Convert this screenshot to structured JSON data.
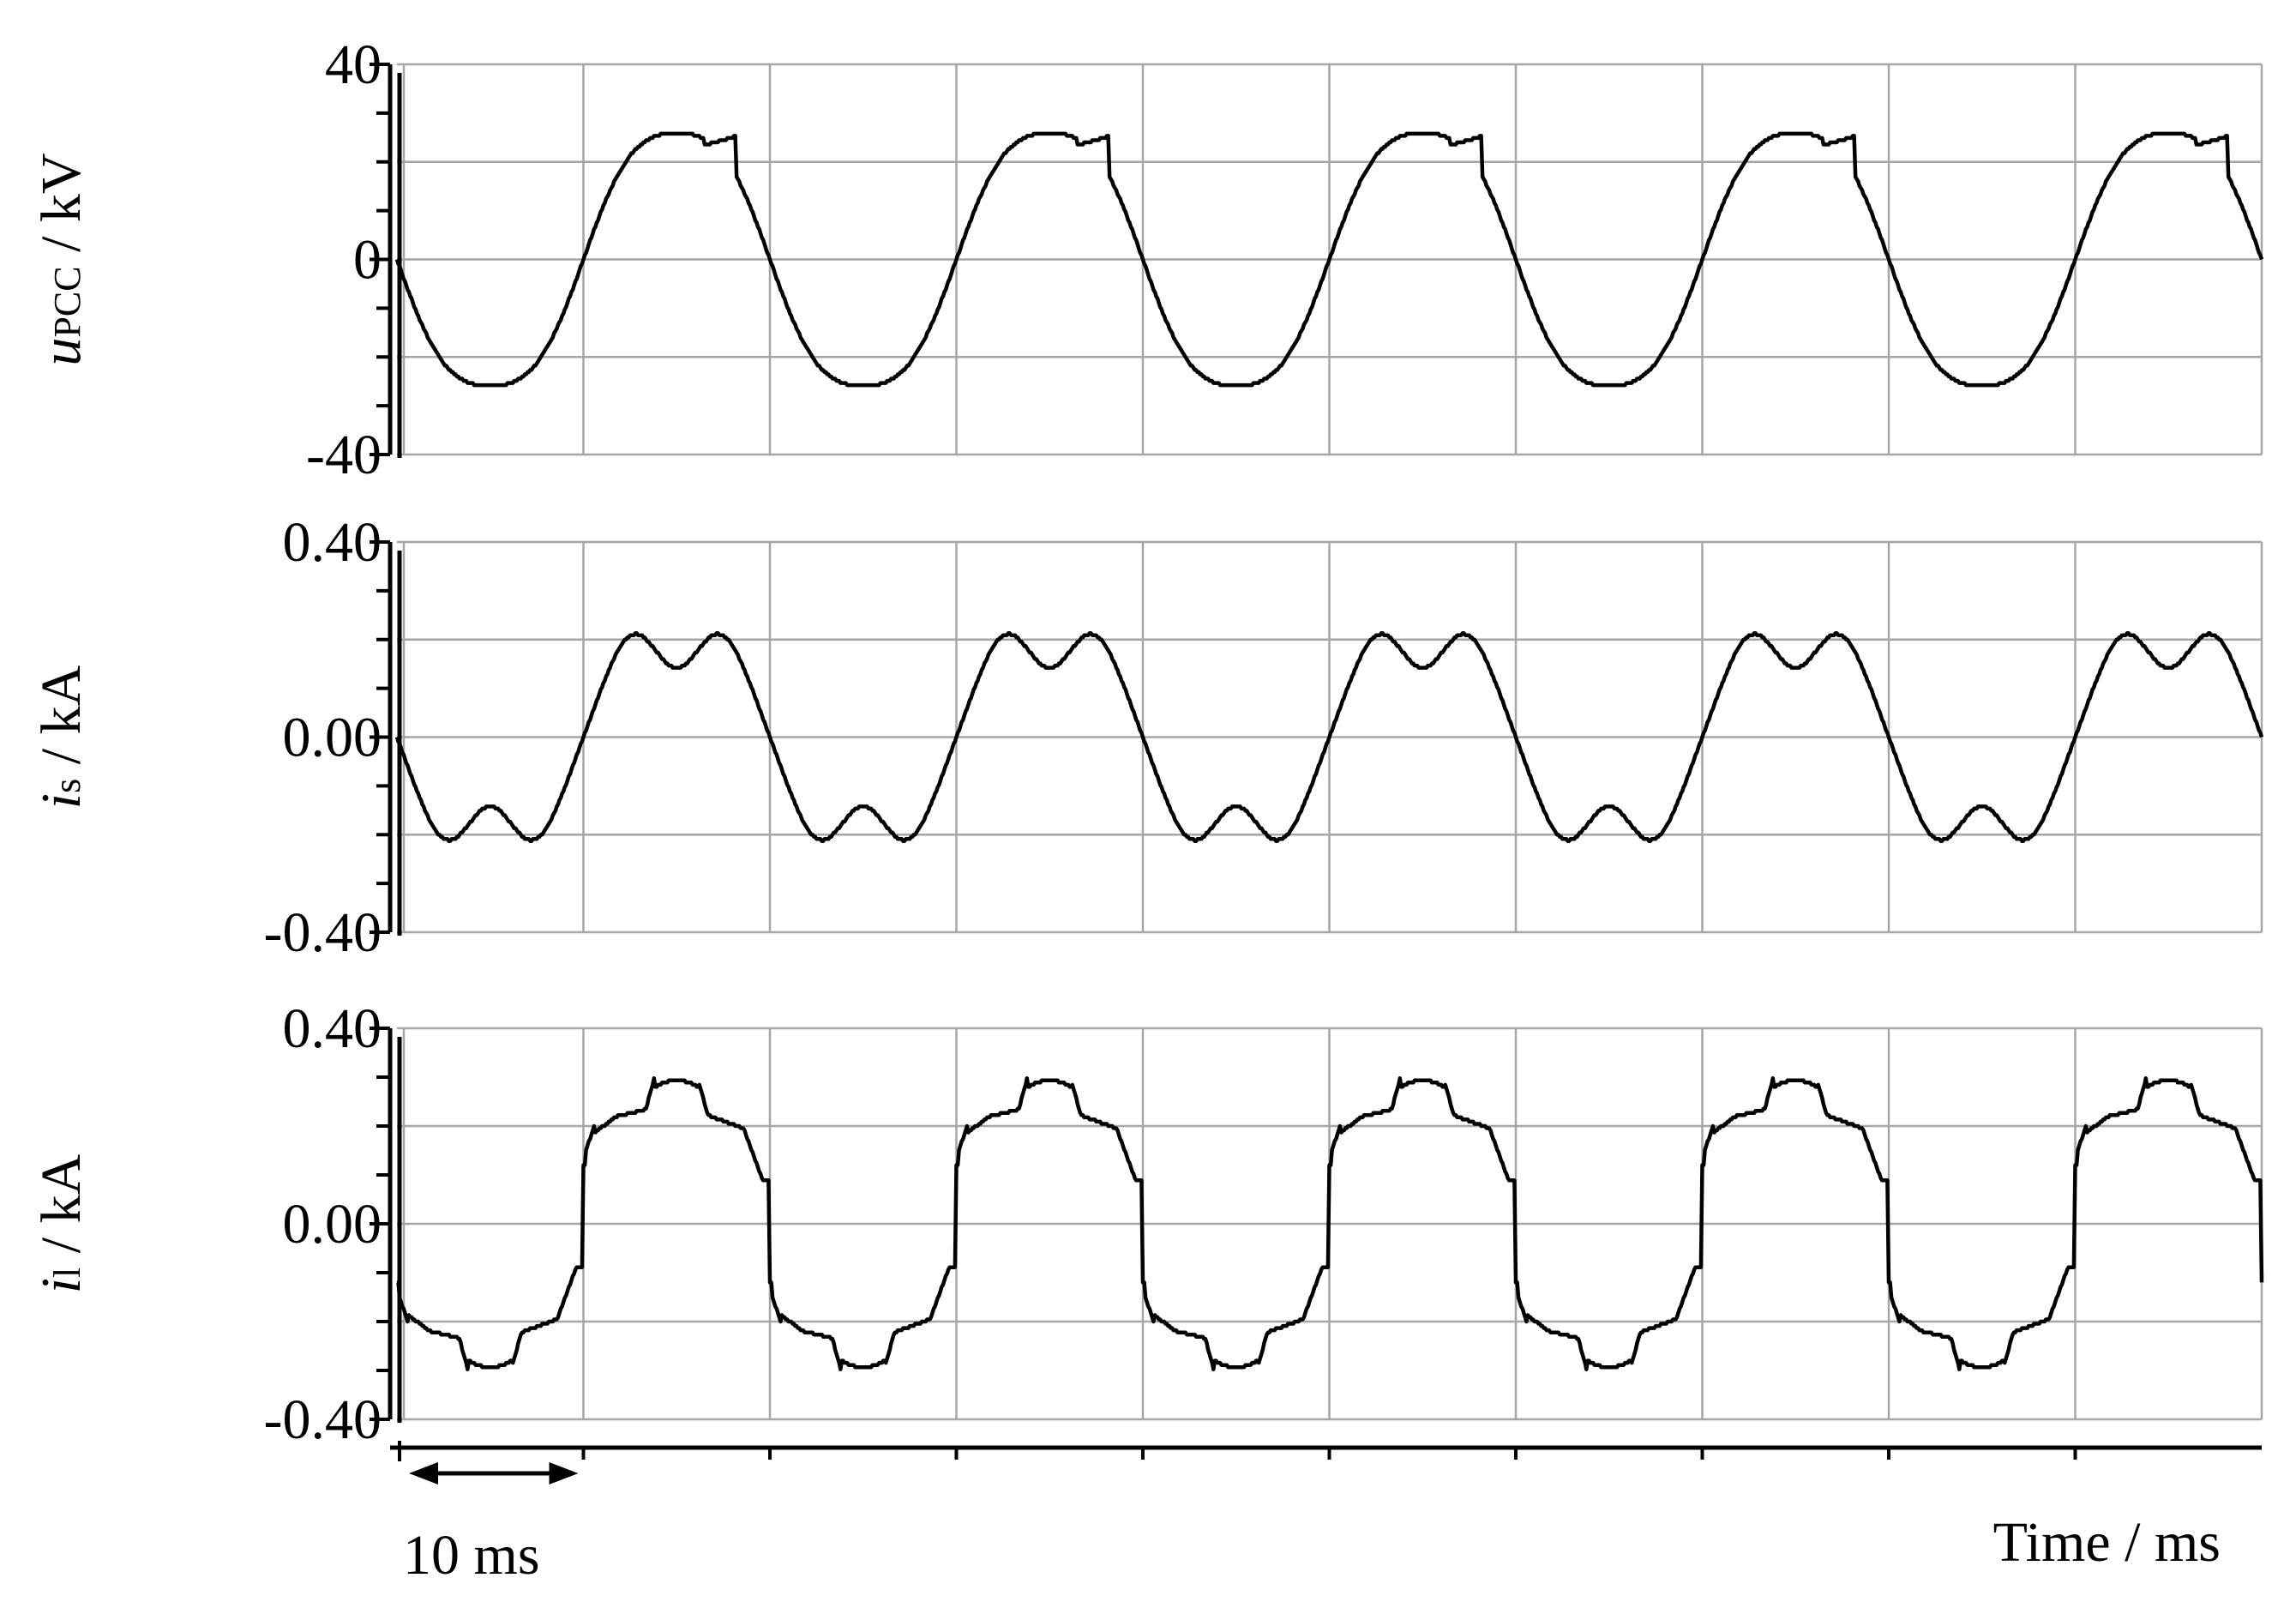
{
  "chart_data": [
    {
      "type": "line",
      "panel": "top",
      "ylabel": {
        "var": "u",
        "sub": "PCC",
        "unit": " / kV"
      },
      "ylim": [
        -40,
        40
      ],
      "yticks": [
        40,
        0,
        -40
      ],
      "ytick_labels": [
        "40",
        "0",
        "-40"
      ],
      "xlim": [
        0,
        100
      ],
      "grid": true,
      "series": [
        {
          "waveform": "pcc_voltage",
          "amplitude": 28,
          "period_ms": 20,
          "unit": "kV"
        }
      ]
    },
    {
      "type": "line",
      "panel": "middle",
      "ylabel": {
        "var": "i",
        "sub": "s",
        "unit": " / kA"
      },
      "ylim": [
        -0.4,
        0.4
      ],
      "yticks": [
        0.4,
        0,
        -0.4
      ],
      "ytick_labels": [
        "0.40",
        "0.00",
        "-0.40"
      ],
      "xlim": [
        0,
        100
      ],
      "grid": true,
      "series": [
        {
          "waveform": "source_current",
          "amplitude": 0.28,
          "period_ms": 20,
          "unit": "kA"
        }
      ]
    },
    {
      "type": "line",
      "panel": "bottom",
      "ylabel": {
        "var": "i",
        "sub": "l",
        "unit": " / kA"
      },
      "ylim": [
        -0.4,
        0.4
      ],
      "yticks": [
        0.4,
        0,
        -0.4
      ],
      "ytick_labels": [
        "0.40",
        "0.00",
        "-0.40"
      ],
      "xlim": [
        0,
        100
      ],
      "grid": true,
      "series": [
        {
          "waveform": "load_current",
          "amplitude": 0.3,
          "period_ms": 20,
          "unit": "kA"
        }
      ]
    }
  ],
  "xaxis": {
    "label": "Time / ms",
    "scale_bar_label": "10 ms",
    "scale_bar_ms": 10
  }
}
